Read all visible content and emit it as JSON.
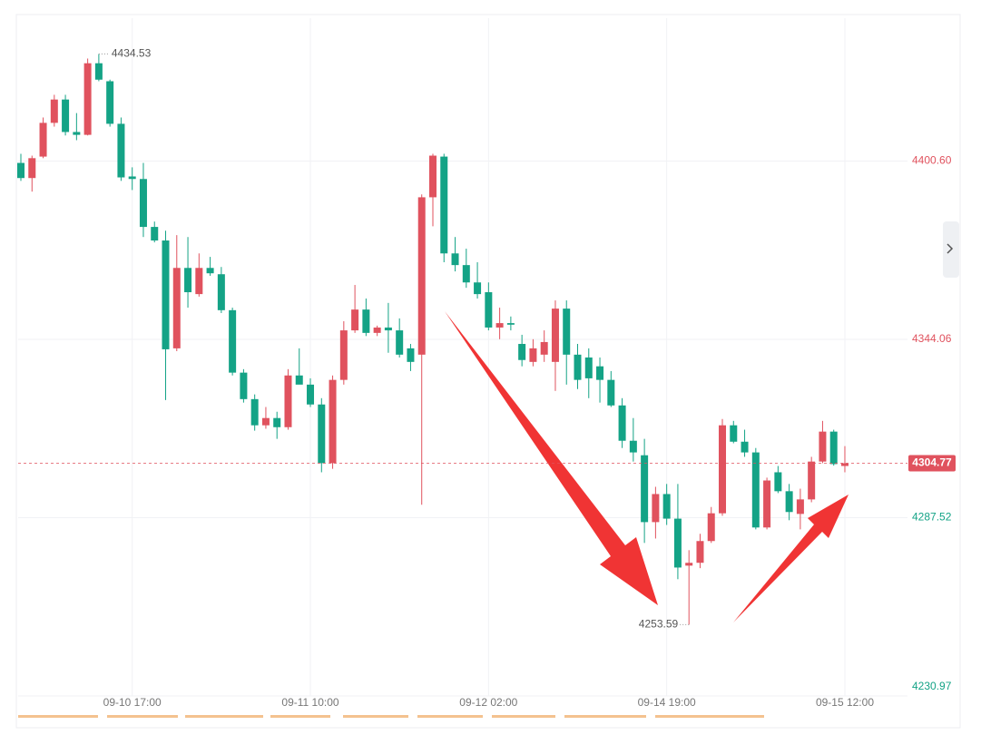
{
  "chart_data": {
    "type": "candlestick",
    "categories": [
      null,
      null,
      null,
      null,
      null,
      null,
      null,
      null,
      null,
      null,
      "09-10 17:00",
      null,
      null,
      null,
      null,
      null,
      null,
      null,
      null,
      null,
      null,
      null,
      null,
      null,
      null,
      null,
      "09-11 10:00",
      null,
      null,
      null,
      null,
      null,
      null,
      null,
      null,
      null,
      null,
      null,
      null,
      null,
      null,
      null,
      "09-12 02:00",
      null,
      null,
      null,
      null,
      null,
      null,
      null,
      null,
      null,
      null,
      null,
      null,
      null,
      null,
      null,
      "09-14 19:00",
      null,
      null,
      null,
      null,
      null,
      null,
      null,
      null,
      null,
      null,
      null,
      null,
      null,
      null,
      null,
      "09-15 12:00"
    ],
    "open": [
      4400.0,
      4395.2,
      4402.0,
      4412.7,
      4420.1,
      4409.8,
      4408.9,
      4431.6,
      4425.9,
      4412.4,
      4395.7,
      4394.9,
      4379.7,
      4375.4,
      4341.2,
      4366.7,
      4358.4,
      4366.7,
      4364.7,
      4353.3,
      4333.5,
      4325.1,
      4316.8,
      4319.1,
      4316.2,
      4332.6,
      4329.7,
      4323.4,
      4304.8,
      4331.2,
      4346.9,
      4353.5,
      4346.1,
      4347.8,
      4346.9,
      4341.2,
      4339.2,
      4389.1,
      4402.0,
      4371.3,
      4367.6,
      4362.1,
      4359.0,
      4347.8,
      4349.2,
      4342.6,
      4336.9,
      4339.2,
      4336.9,
      4353.8,
      4339.2,
      4338.3,
      4335.5,
      4331.2,
      4323.1,
      4311.9,
      4307.3,
      4286.1,
      4295.0,
      4287.2,
      4272.3,
      4273.2,
      4280.1,
      4288.9,
      4316.8,
      4311.6,
      4308.2,
      4284.4,
      4301.9,
      4295.9,
      4288.7,
      4293.3,
      4305.3,
      4314.8,
      4303.9
    ],
    "high": [
      4402.9,
      4402.3,
      4414.4,
      4421.6,
      4421.6,
      4415.8,
      4433.1,
      4434.53,
      4426.4,
      4414.4,
      4398.6,
      4400.0,
      4381.4,
      4378.5,
      4377.1,
      4376.5,
      4371.3,
      4370.2,
      4367.0,
      4354.1,
      4334.6,
      4326.6,
      4322.6,
      4321.1,
      4334.6,
      4341.2,
      4331.7,
      4325.4,
      4332.6,
      4349.8,
      4361.3,
      4357.0,
      4348.4,
      4355.6,
      4350.7,
      4342.6,
      4390.0,
      4402.9,
      4402.9,
      4376.5,
      4372.8,
      4368.5,
      4362.1,
      4354.1,
      4351.3,
      4345.5,
      4344.1,
      4346.9,
      4356.4,
      4356.4,
      4342.6,
      4341.2,
      4338.3,
      4334.0,
      4325.4,
      4319.1,
      4312.5,
      4297.3,
      4298.2,
      4298.2,
      4277.2,
      4282.4,
      4290.9,
      4318.8,
      4318.2,
      4315.4,
      4309.6,
      4300.2,
      4303.9,
      4298.2,
      4296.7,
      4306.8,
      4318.2,
      4315.4,
      4310.2
    ],
    "low": [
      4394.3,
      4390.9,
      4401.5,
      4411.5,
      4408.7,
      4407.2,
      4408.7,
      4425.9,
      4411.5,
      4394.3,
      4391.4,
      4376.5,
      4374.8,
      4324.8,
      4340.3,
      4354.1,
      4357.6,
      4364.2,
      4352.4,
      4332.6,
      4324.0,
      4315.1,
      4315.7,
      4312.5,
      4315.4,
      4331.2,
      4322.6,
      4301.9,
      4303.0,
      4329.7,
      4346.1,
      4345.1,
      4345.1,
      4339.8,
      4338.3,
      4334.0,
      4291.6,
      4379.9,
      4368.5,
      4365.6,
      4360.4,
      4357.0,
      4346.9,
      4344.1,
      4346.9,
      4335.5,
      4335.5,
      4336.9,
      4327.7,
      4329.7,
      4328.3,
      4325.4,
      4324.0,
      4322.6,
      4309.6,
      4305.3,
      4279.5,
      4280.9,
      4285.2,
      4268.0,
      4253.59,
      4271.5,
      4279.5,
      4288.1,
      4311.1,
      4306.8,
      4283.8,
      4283.8,
      4295.3,
      4286.7,
      4283.8,
      4292.4,
      4304.8,
      4304.0,
      4301.9
    ],
    "close": [
      4395.2,
      4401.5,
      4412.7,
      4420.1,
      4409.8,
      4408.9,
      4431.6,
      4426.4,
      4412.4,
      4395.4,
      4394.9,
      4379.7,
      4375.4,
      4340.9,
      4366.7,
      4359.0,
      4366.7,
      4365.0,
      4353.3,
      4333.5,
      4325.1,
      4316.8,
      4319.1,
      4316.2,
      4332.6,
      4329.7,
      4323.4,
      4304.8,
      4331.2,
      4346.9,
      4353.5,
      4346.1,
      4347.8,
      4346.9,
      4339.2,
      4336.9,
      4389.1,
      4402.3,
      4371.3,
      4367.6,
      4362.1,
      4358.4,
      4347.8,
      4349.2,
      4348.7,
      4337.5,
      4341.2,
      4343.2,
      4353.8,
      4339.2,
      4331.2,
      4331.7,
      4331.2,
      4323.1,
      4311.9,
      4308.2,
      4286.1,
      4295.0,
      4287.2,
      4271.7,
      4273.2,
      4280.1,
      4288.9,
      4316.8,
      4311.6,
      4308.2,
      4284.4,
      4299.3,
      4295.9,
      4289.3,
      4293.3,
      4305.3,
      4314.8,
      4304.5,
      4304.77
    ],
    "ylim": [
      4230.97,
      4445.9
    ],
    "yticks": [
      4230.97,
      4287.52,
      4344.06,
      {
        "value": 4400.6,
        "label": "4400.60"
      }
    ],
    "up_color": "#e0525e",
    "down_color": "#14a386",
    "grid": true
  }
}
